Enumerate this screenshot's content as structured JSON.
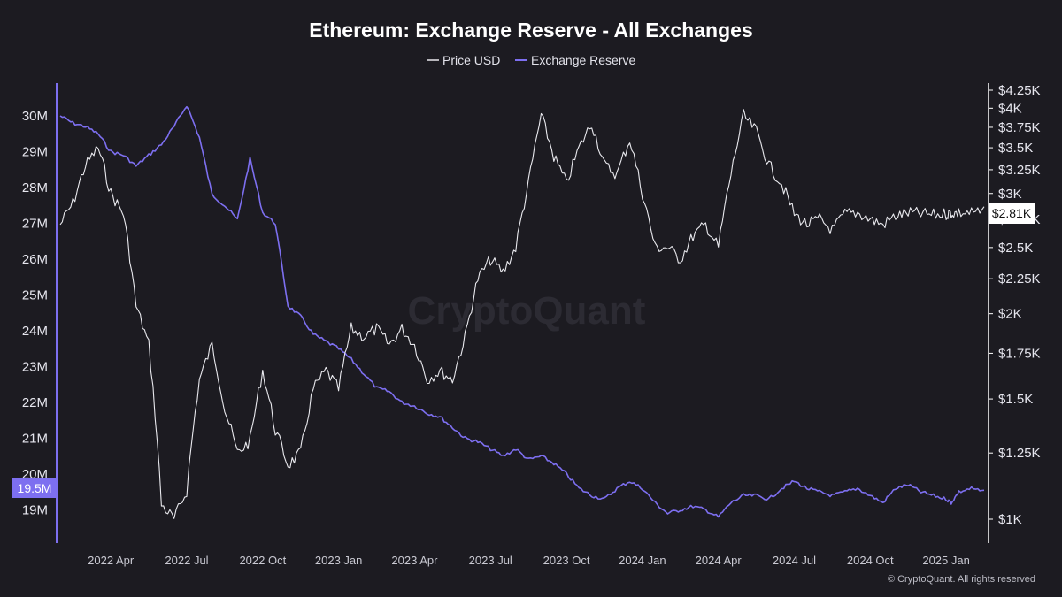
{
  "chart_data": {
    "type": "line",
    "title": "Ethereum: Exchange Reserve - All Exchanges",
    "watermark": "CryptoQuant",
    "footer": "© CryptoQuant. All rights reserved",
    "legend": {
      "placement": "top-center",
      "items": [
        "Price USD",
        "Exchange Reserve"
      ]
    },
    "colors": {
      "background": "#1c1b21",
      "price": "#e9e9ee",
      "reserve": "#7d6ff0",
      "left_badge": "#7d6ff0",
      "right_badge": "#ffffff"
    },
    "x_axis": {
      "ticks": [
        "2022 Apr",
        "2022 Jul",
        "2022 Oct",
        "2023 Jan",
        "2023 Apr",
        "2023 Jul",
        "2023 Oct",
        "2024 Jan",
        "2024 Apr",
        "2024 Jul",
        "2024 Oct",
        "2025 Jan"
      ],
      "range": [
        "2022 Feb",
        "2025 Feb"
      ]
    },
    "y_left": {
      "label": "",
      "unit": "M",
      "ticks": [
        "30M",
        "29M",
        "28M",
        "27M",
        "26M",
        "25M",
        "24M",
        "23M",
        "22M",
        "21M",
        "20M",
        "19M"
      ],
      "range": [
        18.5,
        30.5
      ],
      "current_badge": "19.5M"
    },
    "y_right": {
      "label": "",
      "scale": "log",
      "ticks": [
        "$4.25K",
        "$4K",
        "$3.75K",
        "$3.5K",
        "$3.25K",
        "$3K",
        "$2.75K",
        "$2.5K",
        "$2.25K",
        "$2K",
        "$1.75K",
        "$1.5K",
        "$1.25K",
        "$1K"
      ],
      "range": [
        900,
        4300
      ],
      "current_badge": "$2.81K"
    },
    "grid": false,
    "series": [
      {
        "name": "Exchange Reserve",
        "axis": "left",
        "x": [
          0,
          0.5,
          1,
          1.5,
          2,
          2.5,
          3,
          3.5,
          4,
          4.5,
          5,
          5.5,
          6,
          6.5,
          7,
          7.5,
          8,
          8.5,
          9,
          9.5,
          10,
          10.5,
          11,
          11.5,
          12,
          12.5,
          13,
          13.5,
          14,
          14.5,
          15,
          15.5,
          16,
          16.5,
          17,
          17.5,
          18,
          18.5,
          19,
          19.5,
          20,
          20.5,
          21,
          21.5,
          22,
          22.5,
          23,
          23.5,
          24,
          24.5,
          25,
          25.5,
          26,
          26.5,
          27,
          27.5,
          28,
          28.5,
          29,
          29.5,
          30,
          30.5,
          31,
          31.5,
          32,
          32.5,
          33,
          33.5,
          34,
          34.5,
          35,
          35.2,
          35.5,
          36,
          36.5
        ],
        "values": [
          30.0,
          29.8,
          29.7,
          29.5,
          29.0,
          28.9,
          28.6,
          28.9,
          29.2,
          29.7,
          30.3,
          29.4,
          27.8,
          27.5,
          27.1,
          28.8,
          27.3,
          27.0,
          24.7,
          24.4,
          23.9,
          23.7,
          23.5,
          23.2,
          22.8,
          22.4,
          22.3,
          22.0,
          21.9,
          21.7,
          21.6,
          21.3,
          21.0,
          20.9,
          20.7,
          20.5,
          20.7,
          20.4,
          20.5,
          20.3,
          20.0,
          19.6,
          19.4,
          19.3,
          19.6,
          19.8,
          19.6,
          19.2,
          18.9,
          19.0,
          19.1,
          19.0,
          18.8,
          19.2,
          19.4,
          19.4,
          19.3,
          19.6,
          19.8,
          19.6,
          19.5,
          19.4,
          19.5,
          19.6,
          19.4,
          19.2,
          19.6,
          19.7,
          19.5,
          19.4,
          19.3,
          19.2,
          19.5,
          19.6,
          19.5
        ]
      },
      {
        "name": "Price USD",
        "axis": "right",
        "x": [
          0,
          0.5,
          1,
          1.5,
          2,
          2.5,
          3,
          3.5,
          4,
          4.5,
          5,
          5.5,
          6,
          6.5,
          7,
          7.5,
          8,
          8.5,
          9,
          9.5,
          10,
          10.5,
          11,
          11.5,
          12,
          12.5,
          13,
          13.5,
          14,
          14.5,
          15,
          15.5,
          16,
          16.5,
          17,
          17.5,
          18,
          18.5,
          19,
          19.5,
          20,
          20.5,
          21,
          21.5,
          22,
          22.5,
          23,
          23.5,
          24,
          24.5,
          25,
          25.5,
          26,
          26.5,
          27,
          27.5,
          28,
          28.5,
          29,
          29.5,
          30,
          30.5,
          31,
          31.5,
          32,
          32.5,
          33,
          33.5,
          34,
          34.5,
          35,
          35.2,
          35.5,
          36,
          36.5
        ],
        "values": [
          2700,
          2900,
          3300,
          3500,
          3000,
          2800,
          2050,
          1800,
          1050,
          1000,
          1100,
          1600,
          1800,
          1450,
          1250,
          1300,
          1650,
          1350,
          1200,
          1250,
          1550,
          1650,
          1550,
          1900,
          1850,
          1900,
          1800,
          1900,
          1800,
          1600,
          1650,
          1600,
          1850,
          2250,
          2400,
          2300,
          2500,
          3100,
          3900,
          3400,
          3100,
          3500,
          3800,
          3300,
          3200,
          3600,
          3000,
          2500,
          2500,
          2400,
          2600,
          2700,
          2500,
          3200,
          3900,
          3700,
          3300,
          3100,
          2800,
          2700,
          2750,
          2650,
          2800,
          2810,
          2750,
          2700,
          2780,
          2810,
          2800,
          2790,
          2800,
          2810,
          2810,
          2810,
          2810
        ]
      }
    ]
  }
}
